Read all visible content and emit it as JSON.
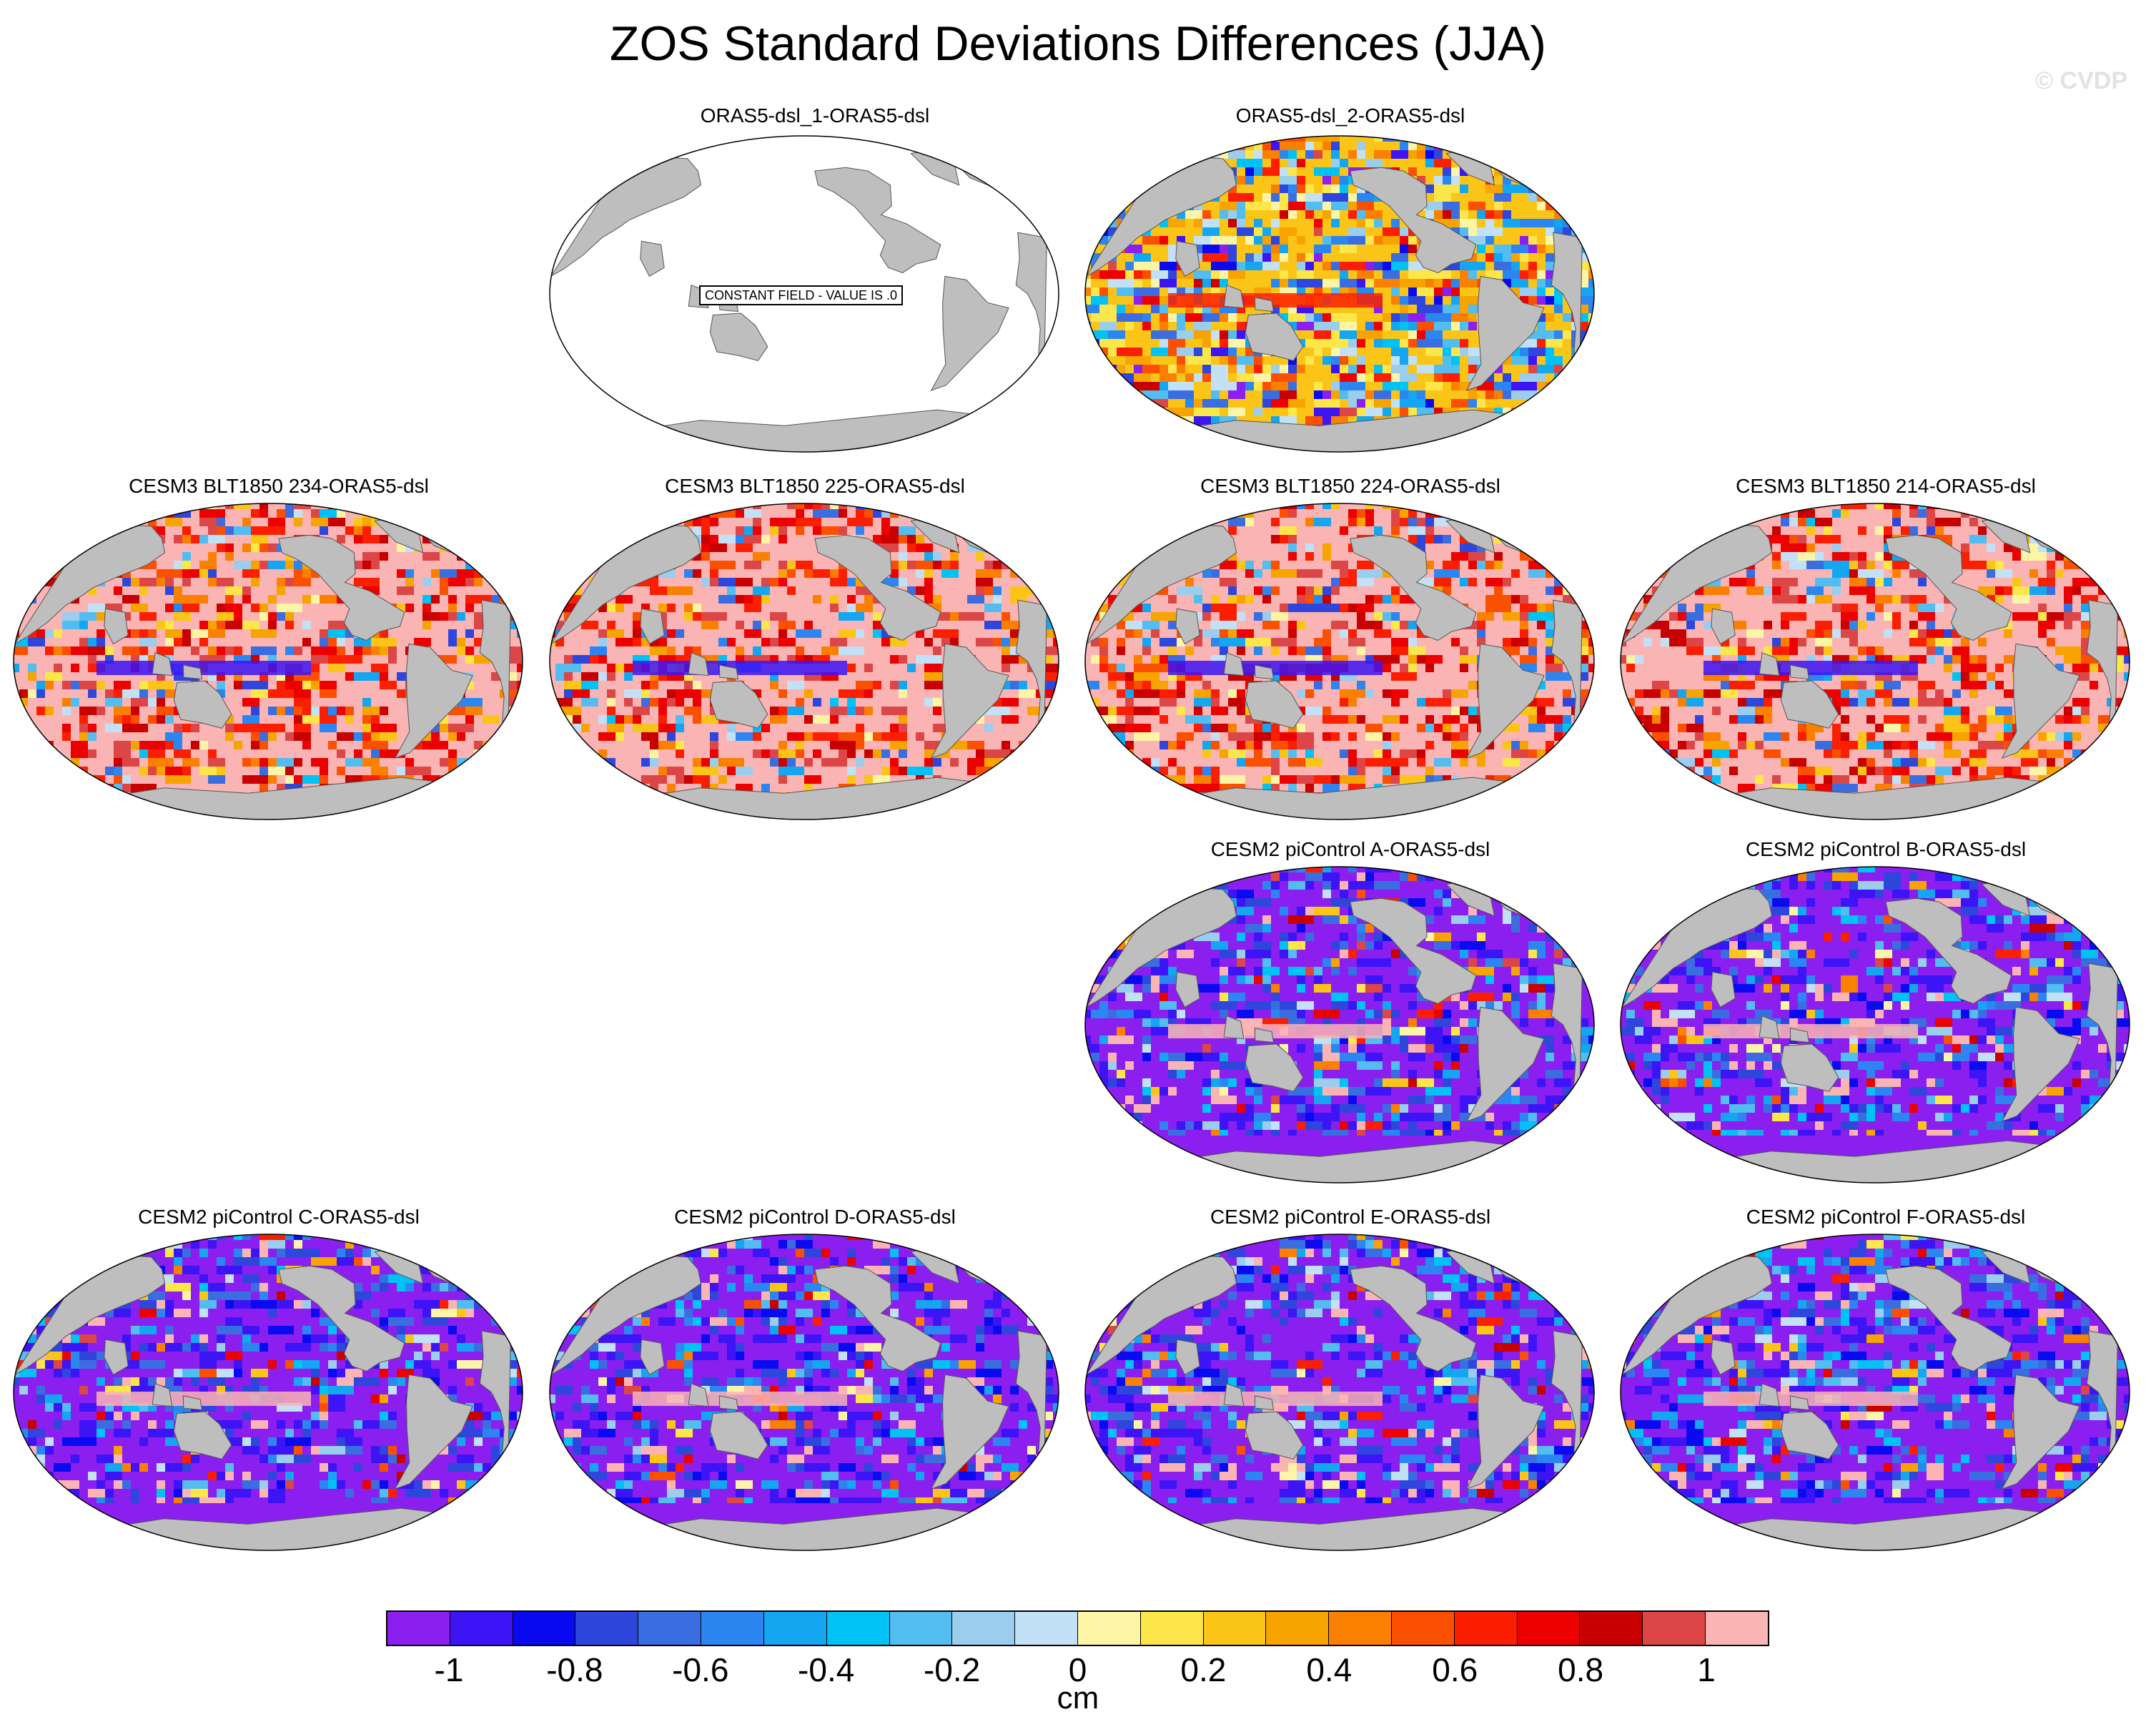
{
  "title": "ZOS Standard Deviations Differences (JJA)",
  "watermark": "© CVDP",
  "constant_field_label": "CONSTANT FIELD - VALUE IS .0",
  "panels": [
    {
      "title": "ORAS5-dsl_1-ORAS5-dsl",
      "pattern": "constant"
    },
    {
      "title": "ORAS5-dsl_2-ORAS5-dsl",
      "pattern": "mixed"
    },
    {
      "title": "CESM3 BLT1850 234-ORAS5-dsl",
      "pattern": "positive"
    },
    {
      "title": "CESM3 BLT1850 225-ORAS5-dsl",
      "pattern": "positive"
    },
    {
      "title": "CESM3 BLT1850 224-ORAS5-dsl",
      "pattern": "positive"
    },
    {
      "title": "CESM3 BLT1850 214-ORAS5-dsl",
      "pattern": "positive"
    },
    {
      "title": "CESM2 piControl A-ORAS5-dsl",
      "pattern": "negative"
    },
    {
      "title": "CESM2 piControl B-ORAS5-dsl",
      "pattern": "negative"
    },
    {
      "title": "CESM2 piControl C-ORAS5-dsl",
      "pattern": "negative"
    },
    {
      "title": "CESM2 piControl D-ORAS5-dsl",
      "pattern": "negative"
    },
    {
      "title": "CESM2 piControl E-ORAS5-dsl",
      "pattern": "negative"
    },
    {
      "title": "CESM2 piControl F-ORAS5-dsl",
      "pattern": "negative"
    }
  ],
  "colorbar": {
    "colors": [
      "#8a1ff0",
      "#3c14f5",
      "#0a0af0",
      "#2e46dc",
      "#3a6ee0",
      "#2b86f2",
      "#14a6f0",
      "#00c2f5",
      "#52bdf0",
      "#9acdee",
      "#c3e1f6",
      "#fdf5a6",
      "#fde64a",
      "#fbc518",
      "#f7a300",
      "#fb8000",
      "#fb5000",
      "#fb1e00",
      "#ec0000",
      "#c80000",
      "#dc4646",
      "#fbb4b4"
    ],
    "tick_labels": [
      "-1",
      "-0.8",
      "-0.6",
      "-0.4",
      "-0.2",
      "0",
      "0.2",
      "0.4",
      "0.6",
      "0.8",
      "1"
    ],
    "unit": "cm"
  },
  "colors": {
    "land": "#bebebe",
    "ocean_blank": "#ffffff",
    "border": "#000000"
  }
}
